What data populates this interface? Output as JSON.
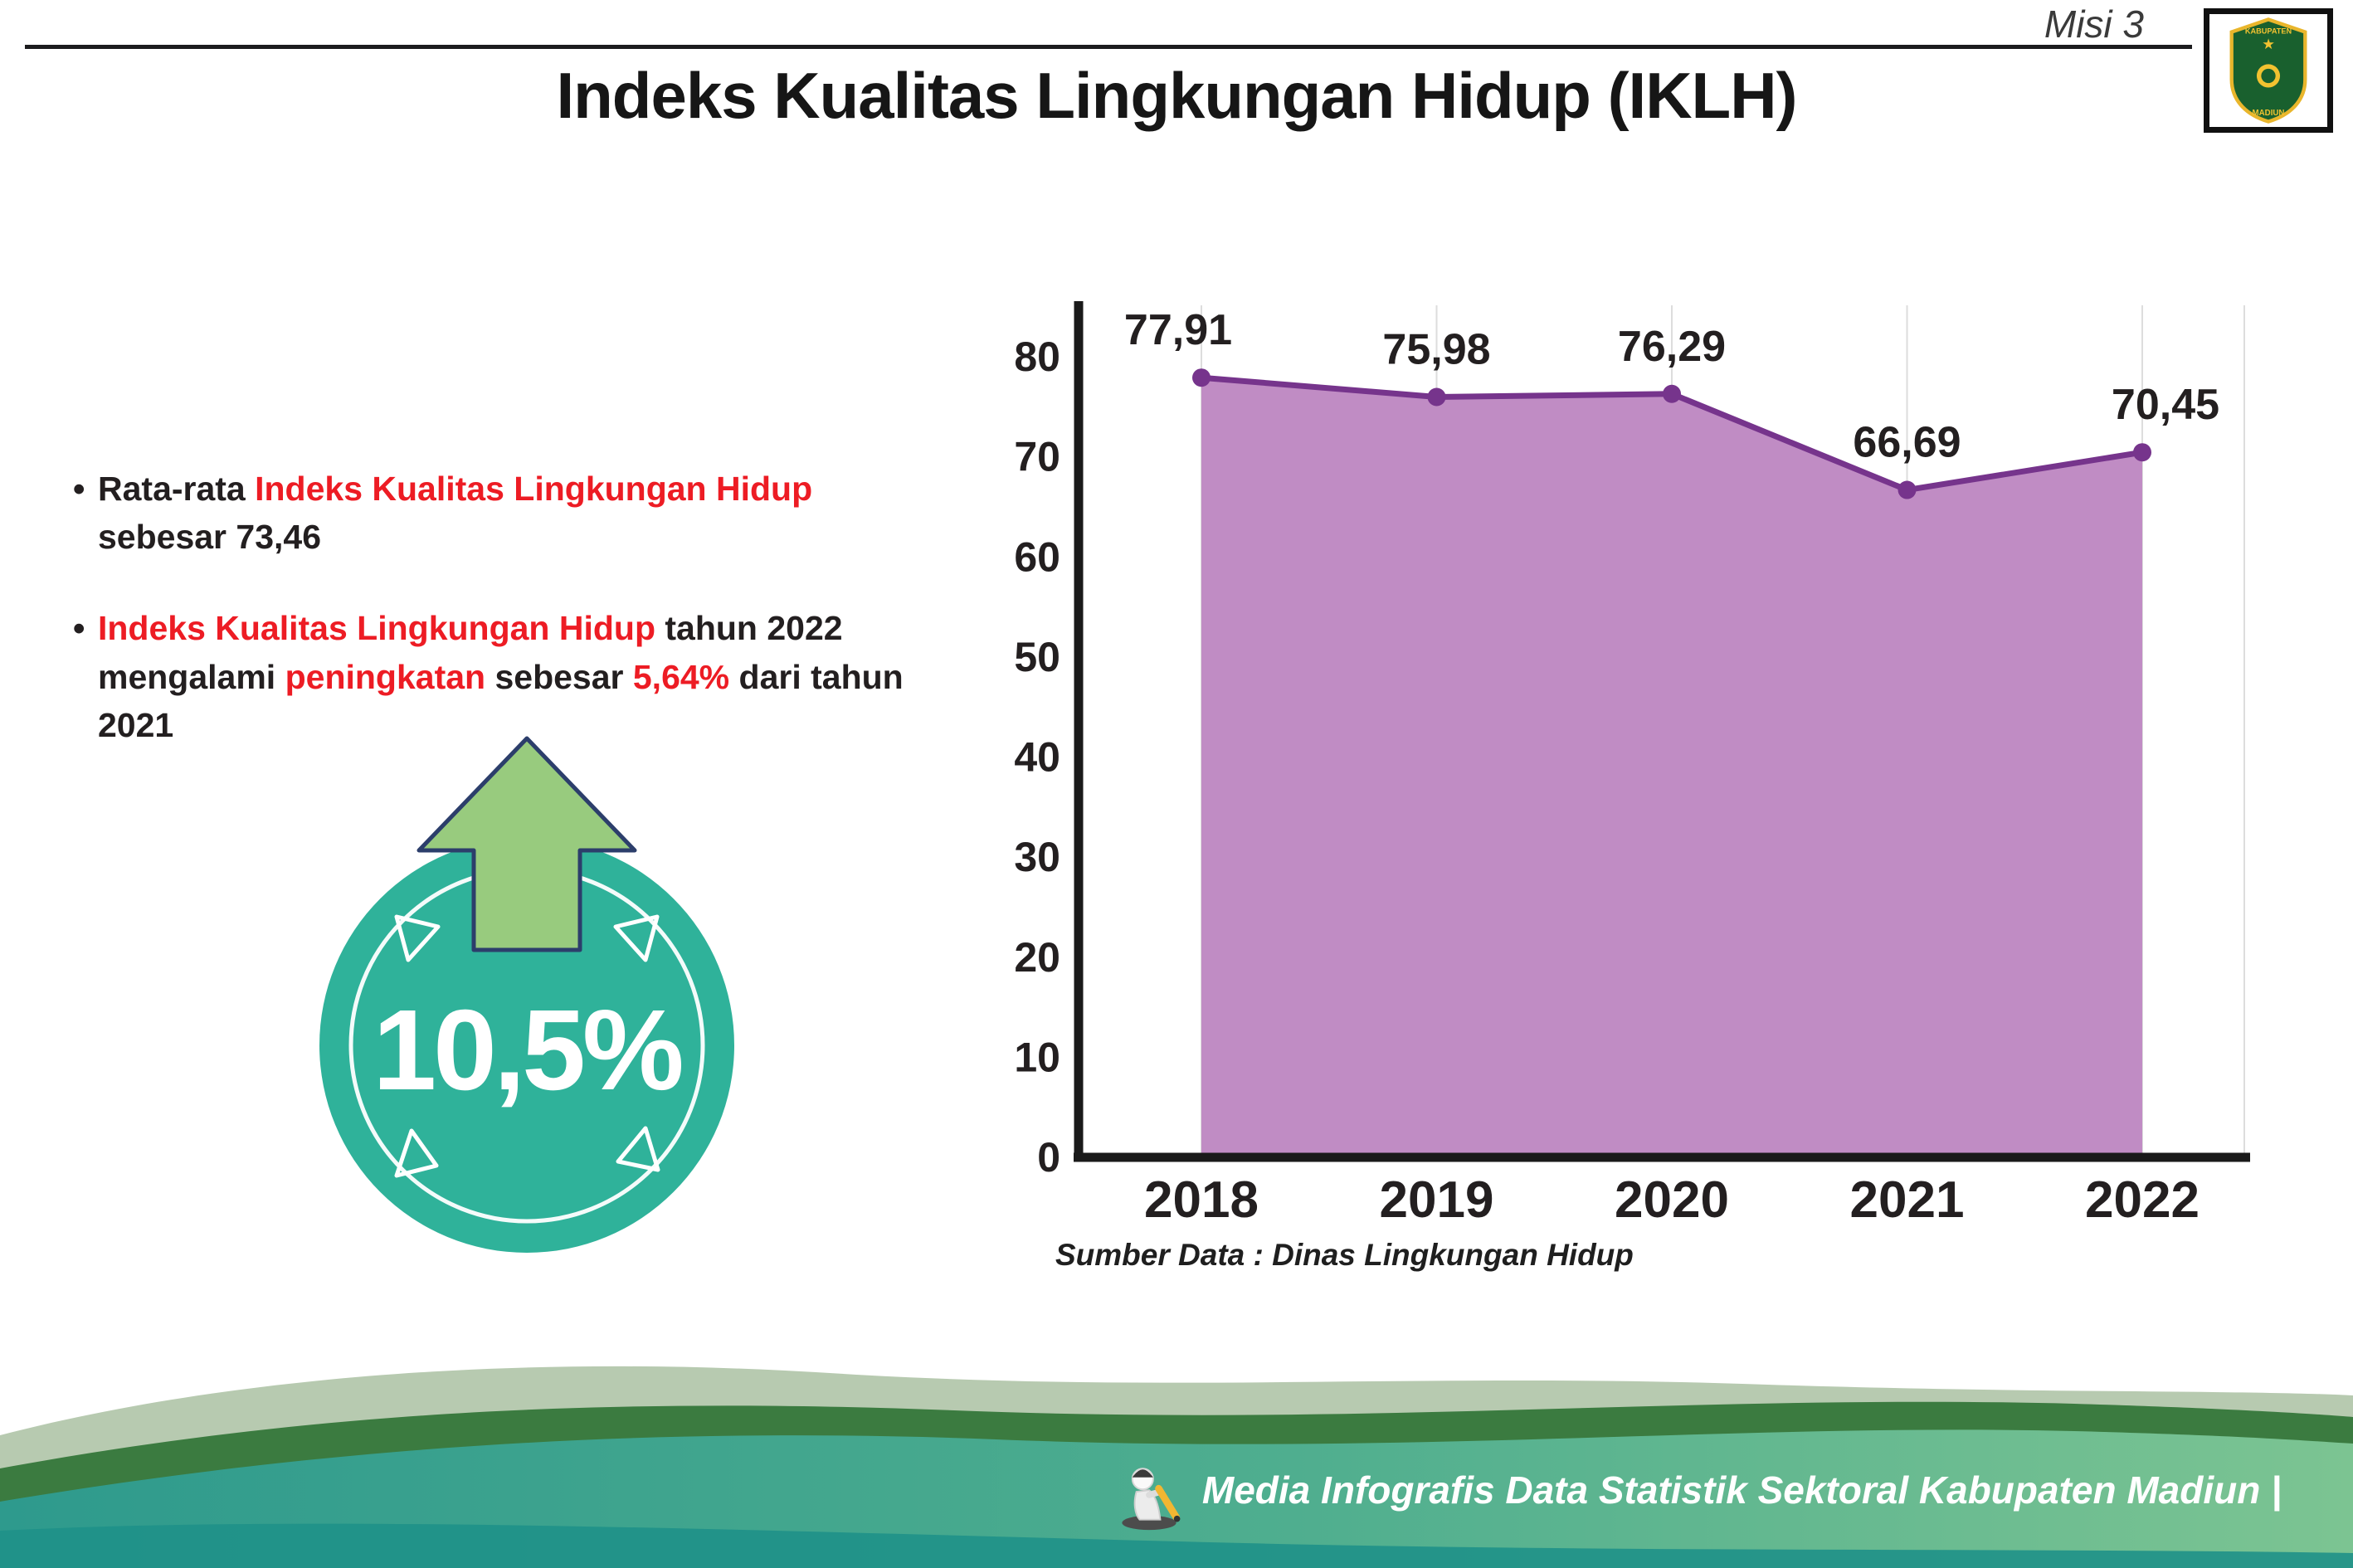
{
  "page": {
    "misi": "Misi 3",
    "title": "Indeks Kualitas Lingkungan Hidup (IKLH)"
  },
  "logo": {
    "top_text": "KABUPATEN",
    "bottom_text": "MADIUN",
    "star": "★"
  },
  "bullets": {
    "b1_pre": "Rata-rata ",
    "b1_red": "Indeks Kualitas Lingkungan Hidup",
    "b1_post": " sebesar 73,46",
    "b2_red1": "Indeks Kualitas Lingkungan Hidup",
    "b2_mid1": " tahun 2022 mengalami ",
    "b2_red2": "peningkatan",
    "b2_mid2": " sebesar ",
    "b2_red3": "5,64%",
    "b2_post": " dari tahun 2021"
  },
  "badge": {
    "value": "10,5%"
  },
  "chart_data": {
    "type": "area",
    "title": "Indeks Kualitas Lingkungan Hidup (IKLH)",
    "categories": [
      "2018",
      "2019",
      "2020",
      "2021",
      "2022"
    ],
    "values": [
      77.91,
      75.98,
      76.29,
      66.69,
      70.45
    ],
    "point_labels": [
      "77,91",
      "75,98",
      "76,29",
      "66,69",
      "70,45"
    ],
    "ylim": [
      0,
      80
    ],
    "yticks": [
      0,
      10,
      20,
      30,
      40,
      50,
      60,
      70,
      80
    ],
    "grid": "vertical",
    "legend": "none",
    "xlabel": "",
    "ylabel": "",
    "source_note": "Sumber Data : Dinas Lingkungan Hidup",
    "colors": {
      "area": "#c08cc4",
      "line": "#76348c",
      "marker": "#76348c",
      "axis": "#1a1a1a",
      "label": "#231f20",
      "grid": "#dddddd"
    }
  },
  "footer": {
    "credit": "Media Infografis Data Statistik Sektoral Kabupaten Madiun |"
  },
  "theme": {
    "red": "#ed1c24",
    "badge_teal": "#2fb29a",
    "arrow_green": "#98cb7e",
    "arrow_outline": "#2c3e6b",
    "wave_sage": "#b7cab0",
    "wave_green": "#3b7b40",
    "wave_teal_deep": "#1f9188"
  }
}
